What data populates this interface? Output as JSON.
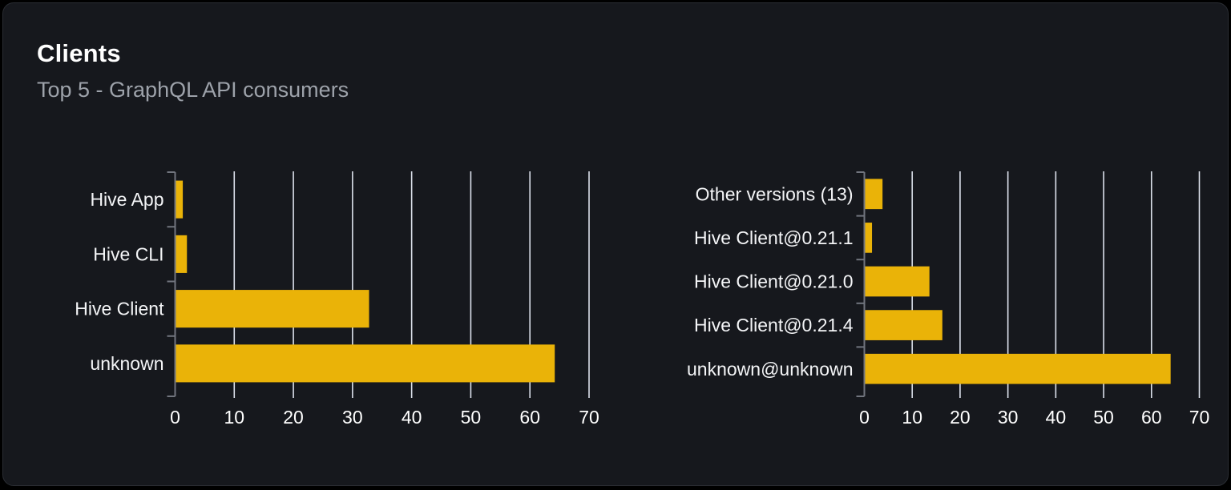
{
  "card": {
    "title": "Clients",
    "subtitle": "Top 5 - GraphQL API consumers"
  },
  "colors": {
    "page_bg": "#000000",
    "card_bg": "#16181d",
    "card_border": "#2a2d33",
    "title": "#ffffff",
    "subtitle": "#9da2aa",
    "bar": "#eab308",
    "gridline": "#dce1ec",
    "axis_line": "#71757e",
    "category_label": "#f4f5f7",
    "tick_label": "#ffffff"
  },
  "chart_data": [
    {
      "type": "bar",
      "orientation": "horizontal",
      "name": "clients-by-name",
      "title": "",
      "xlabel": "",
      "ylabel": "",
      "categories": [
        "Hive App",
        "Hive CLI",
        "Hive Client",
        "unknown"
      ],
      "values": [
        1.3,
        2.0,
        32.8,
        64.2
      ],
      "xlim": [
        0,
        70
      ],
      "xticks": [
        0,
        10,
        20,
        30,
        40,
        50,
        60,
        70
      ],
      "grid": "vertical-behind-bars",
      "legend": false
    },
    {
      "type": "bar",
      "orientation": "horizontal",
      "name": "clients-by-version",
      "title": "",
      "xlabel": "",
      "ylabel": "",
      "categories": [
        "Other versions (13)",
        "Hive Client@0.21.1",
        "Hive Client@0.21.0",
        "Hive Client@0.21.4",
        "unknown@unknown"
      ],
      "values": [
        3.8,
        1.6,
        13.6,
        16.3,
        64.0
      ],
      "xlim": [
        0,
        70
      ],
      "xticks": [
        0,
        10,
        20,
        30,
        40,
        50,
        60,
        70
      ],
      "grid": "vertical-behind-bars",
      "legend": false
    }
  ]
}
